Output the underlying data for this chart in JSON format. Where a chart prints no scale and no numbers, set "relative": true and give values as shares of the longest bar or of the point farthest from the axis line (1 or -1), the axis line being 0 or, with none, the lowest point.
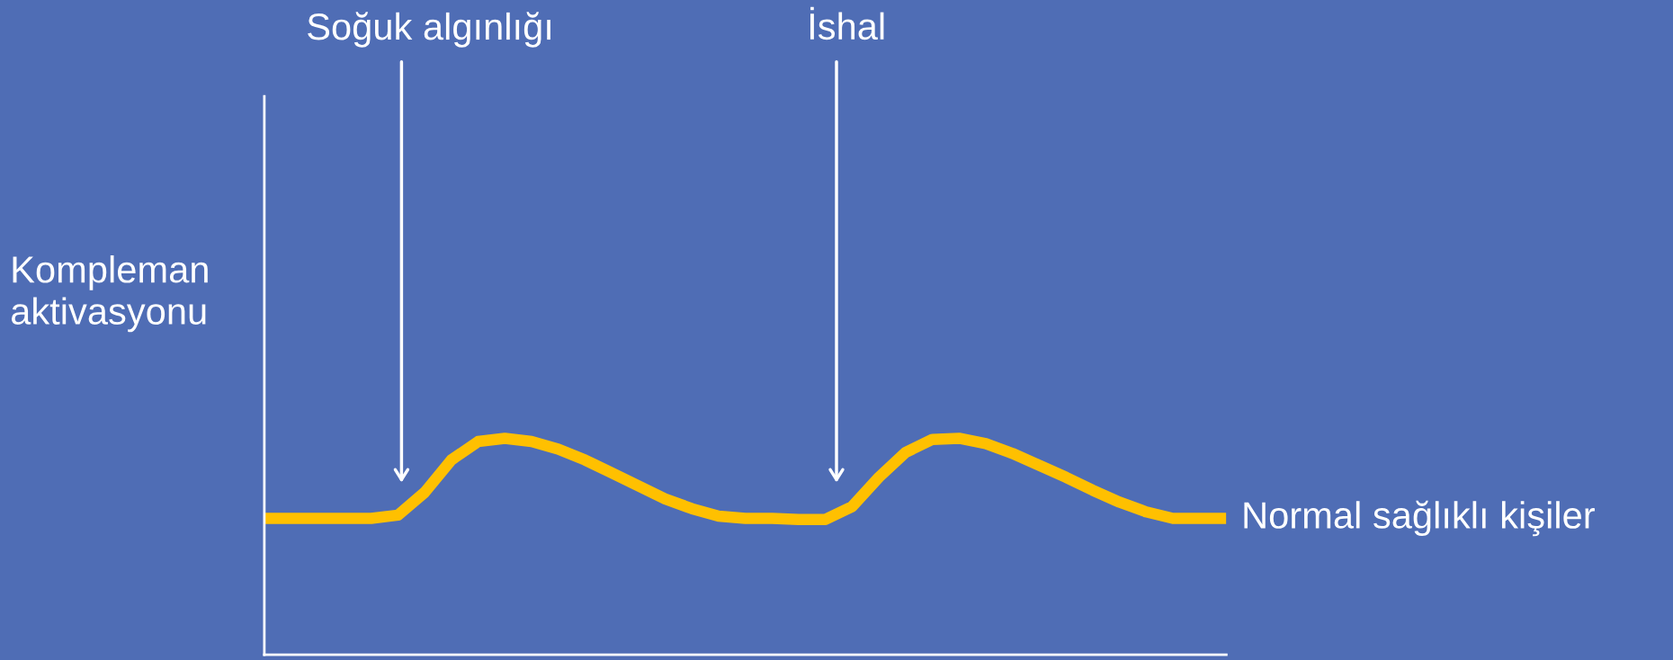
{
  "chart_data": {
    "type": "line",
    "relative": true,
    "ylabel": "Kompleman\naktivasyonu",
    "annotations": [
      "Soğuk algınlığı",
      "İshal"
    ],
    "grid": false,
    "marker": "none",
    "line_style": "solid",
    "categories": [
      null,
      null,
      null,
      null,
      null,
      null,
      null,
      null,
      null,
      null,
      null,
      null,
      null,
      null,
      null,
      null,
      null,
      null,
      null,
      null,
      null,
      null,
      null,
      null,
      null,
      null,
      null,
      null,
      null,
      null,
      null,
      null,
      null,
      null,
      null,
      null,
      null
    ],
    "series": [
      {
        "name": "Normal sağlıklı kişiler",
        "color": "#ffc000",
        "values": [
          0.63,
          0.63,
          0.63,
          0.63,
          0.63,
          0.645,
          0.75,
          0.9,
          0.985,
          1,
          0.985,
          0.95,
          0.9,
          0.84,
          0.78,
          0.72,
          0.675,
          0.64,
          0.63,
          0.63,
          0.625,
          0.625,
          0.685,
          0.82,
          0.935,
          0.995,
          1,
          0.975,
          0.93,
          0.875,
          0.82,
          0.76,
          0.705,
          0.66,
          0.63,
          0.63,
          0.63
        ]
      }
    ]
  }
}
